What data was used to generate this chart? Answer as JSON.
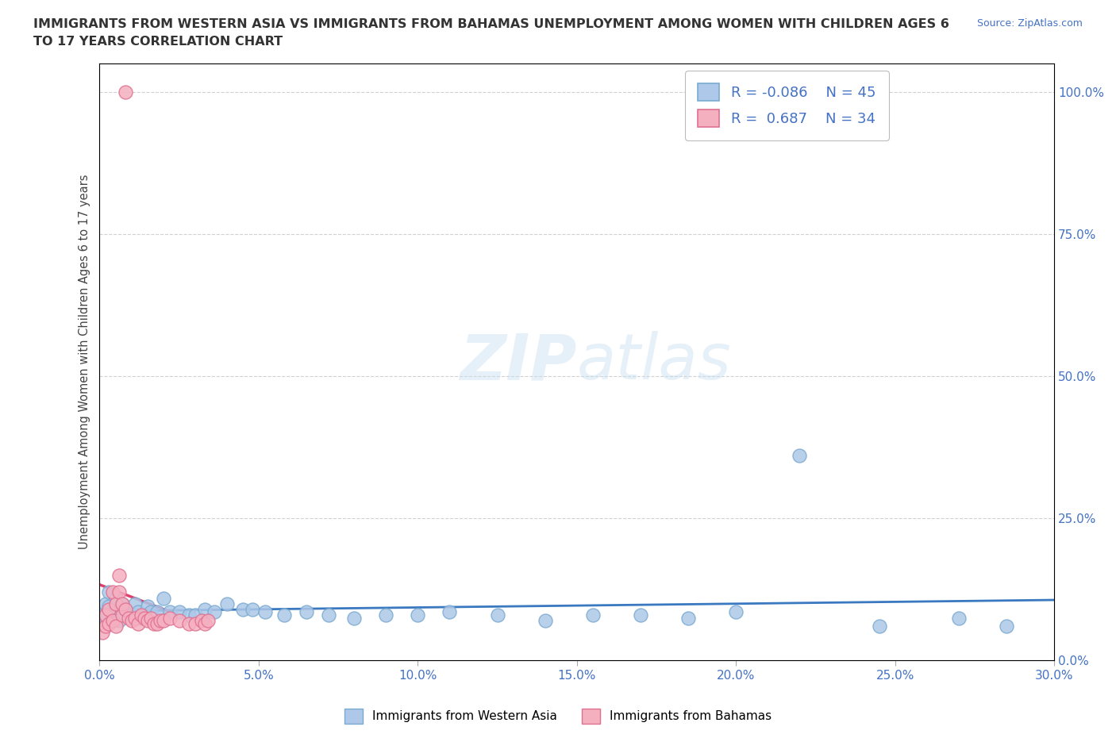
{
  "title_line1": "IMMIGRANTS FROM WESTERN ASIA VS IMMIGRANTS FROM BAHAMAS UNEMPLOYMENT AMONG WOMEN WITH CHILDREN AGES 6",
  "title_line2": "TO 17 YEARS CORRELATION CHART",
  "source_text": "Source: ZipAtlas.com",
  "ylabel": "Unemployment Among Women with Children Ages 6 to 17 years",
  "xlim": [
    0.0,
    0.3
  ],
  "ylim": [
    0.0,
    1.05
  ],
  "xtick_labels": [
    "0.0%",
    "5.0%",
    "10.0%",
    "15.0%",
    "20.0%",
    "25.0%",
    "30.0%"
  ],
  "xtick_values": [
    0.0,
    0.05,
    0.1,
    0.15,
    0.2,
    0.25,
    0.3
  ],
  "ytick_labels": [
    "0.0%",
    "25.0%",
    "50.0%",
    "75.0%",
    "100.0%"
  ],
  "ytick_values": [
    0.0,
    0.25,
    0.5,
    0.75,
    1.0
  ],
  "western_asia_color": "#adc8e8",
  "bahamas_color": "#f5b0c0",
  "western_asia_edge": "#7aaad0",
  "bahamas_edge": "#e07090",
  "trend_western_asia_color": "#3a78c0",
  "trend_bahamas_color": "#e04070",
  "R_western": -0.086,
  "N_western": 45,
  "R_bahamas": 0.687,
  "N_bahamas": 34,
  "legend_label_western": "Immigrants from Western Asia",
  "legend_label_bahamas": "Immigrants from Bahamas",
  "watermark_zip": "ZIP",
  "watermark_atlas": "atlas",
  "background_color": "#ffffff",
  "western_asia_x": [
    0.001,
    0.002,
    0.003,
    0.003,
    0.004,
    0.005,
    0.005,
    0.006,
    0.007,
    0.008,
    0.01,
    0.011,
    0.012,
    0.013,
    0.015,
    0.016,
    0.018,
    0.02,
    0.022,
    0.025,
    0.028,
    0.03,
    0.033,
    0.036,
    0.04,
    0.045,
    0.048,
    0.052,
    0.058,
    0.065,
    0.072,
    0.08,
    0.09,
    0.1,
    0.11,
    0.125,
    0.14,
    0.155,
    0.17,
    0.185,
    0.2,
    0.22,
    0.245,
    0.27,
    0.285
  ],
  "western_asia_y": [
    0.08,
    0.1,
    0.095,
    0.12,
    0.08,
    0.09,
    0.11,
    0.07,
    0.1,
    0.09,
    0.08,
    0.1,
    0.085,
    0.075,
    0.095,
    0.085,
    0.085,
    0.11,
    0.085,
    0.085,
    0.08,
    0.08,
    0.09,
    0.085,
    0.1,
    0.09,
    0.09,
    0.085,
    0.08,
    0.085,
    0.08,
    0.075,
    0.08,
    0.08,
    0.085,
    0.08,
    0.07,
    0.08,
    0.08,
    0.075,
    0.085,
    0.36,
    0.06,
    0.075,
    0.06
  ],
  "bahamas_x": [
    0.001,
    0.002,
    0.002,
    0.003,
    0.003,
    0.004,
    0.004,
    0.005,
    0.005,
    0.006,
    0.006,
    0.007,
    0.007,
    0.008,
    0.009,
    0.01,
    0.011,
    0.012,
    0.013,
    0.014,
    0.015,
    0.016,
    0.017,
    0.018,
    0.019,
    0.02,
    0.022,
    0.025,
    0.028,
    0.03,
    0.032,
    0.033,
    0.034,
    0.008
  ],
  "bahamas_y": [
    0.05,
    0.06,
    0.08,
    0.065,
    0.09,
    0.07,
    0.12,
    0.06,
    0.1,
    0.12,
    0.15,
    0.08,
    0.1,
    0.09,
    0.075,
    0.07,
    0.075,
    0.065,
    0.08,
    0.075,
    0.07,
    0.075,
    0.065,
    0.065,
    0.07,
    0.07,
    0.075,
    0.07,
    0.065,
    0.065,
    0.07,
    0.065,
    0.07,
    1.0
  ]
}
